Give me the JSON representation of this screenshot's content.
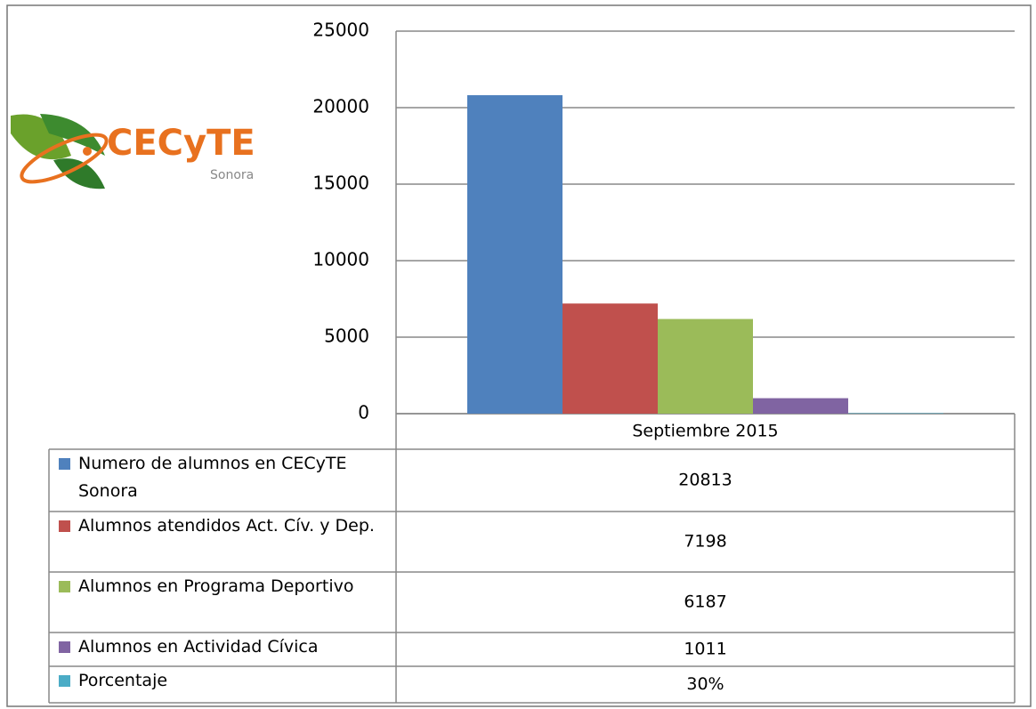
{
  "logo": {
    "name": "CECyTE",
    "place": "Sonora"
  },
  "chart_data": {
    "type": "bar",
    "categories": [
      "Septiembre 2015"
    ],
    "series": [
      {
        "name": "Numero de alumnos en CECyTE Sonora",
        "color": "#4f81bd",
        "values": [
          20813
        ]
      },
      {
        "name": "Alumnos atendidos Act. Cív. y Dep.",
        "color": "#c0504d",
        "values": [
          7198
        ]
      },
      {
        "name": "Alumnos en Programa Deportivo",
        "color": "#9bbb59",
        "values": [
          6187
        ]
      },
      {
        "name": "Alumnos en Actividad Cívica",
        "color": "#8064a2",
        "values": [
          1011
        ]
      },
      {
        "name": "Porcentaje",
        "color": "#4bacc6",
        "values": [
          30
        ],
        "value_labels": [
          "30%"
        ]
      }
    ],
    "ylim": [
      0,
      25000
    ],
    "yticks": [
      0,
      5000,
      10000,
      15000,
      20000,
      25000
    ],
    "grid": true
  }
}
